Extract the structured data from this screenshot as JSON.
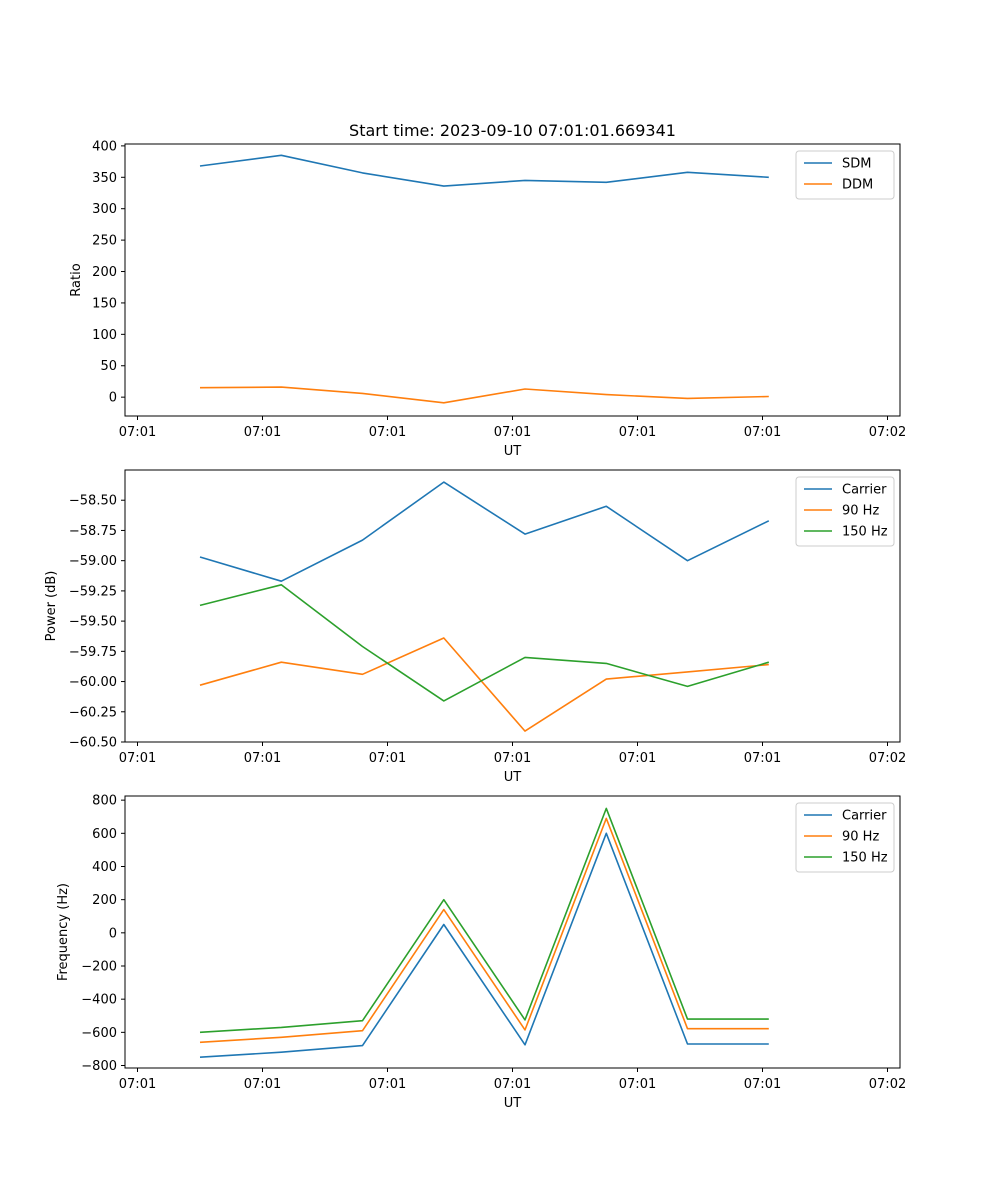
{
  "figure_title": "Start time: 2023-09-10 07:01:01.669341",
  "chart_data": [
    {
      "type": "line",
      "title": "Start time: 2023-09-10 07:01:01.669341",
      "xlabel": "UT",
      "ylabel": "Ratio",
      "x_tick_labels": [
        "07:01",
        "07:01",
        "07:01",
        "07:01",
        "07:01",
        "07:01",
        "07:02"
      ],
      "y_ticks": [
        0,
        50,
        100,
        150,
        200,
        250,
        300,
        350,
        400
      ],
      "y_tick_labels": [
        "0",
        "50",
        "100",
        "150",
        "200",
        "250",
        "300",
        "350",
        "400"
      ],
      "ylim": [
        -30,
        403
      ],
      "legend_position": "top-right",
      "x": [
        0.5,
        1.15,
        1.8,
        2.45,
        3.1,
        3.75,
        4.4,
        5.05
      ],
      "series": [
        {
          "name": "SDM",
          "color": "#1f77b4",
          "values": [
            368,
            385,
            357,
            336,
            345,
            342,
            358,
            350
          ]
        },
        {
          "name": "DDM",
          "color": "#ff7f0e",
          "values": [
            15,
            16,
            6,
            -9,
            13,
            4,
            -2,
            1
          ]
        }
      ]
    },
    {
      "type": "line",
      "title": "",
      "xlabel": "UT",
      "ylabel": "Power (dB)",
      "x_tick_labels": [
        "07:01",
        "07:01",
        "07:01",
        "07:01",
        "07:01",
        "07:01",
        "07:02"
      ],
      "y_ticks": [
        -60.5,
        -60.25,
        -60.0,
        -59.75,
        -59.5,
        -59.25,
        -59.0,
        -58.75,
        -58.5
      ],
      "y_tick_labels": [
        "−60.50",
        "−60.25",
        "−60.00",
        "−59.75",
        "−59.50",
        "−59.25",
        "−59.00",
        "−58.75",
        "−58.50"
      ],
      "ylim": [
        -60.5,
        -58.25
      ],
      "legend_position": "top-right",
      "x": [
        0.5,
        1.15,
        1.8,
        2.45,
        3.1,
        3.75,
        4.4,
        5.05
      ],
      "series": [
        {
          "name": "Carrier",
          "color": "#1f77b4",
          "values": [
            -58.97,
            -59.17,
            -58.83,
            -58.35,
            -58.78,
            -58.55,
            -59.0,
            -58.67
          ]
        },
        {
          "name": "90 Hz",
          "color": "#ff7f0e",
          "values": [
            -60.03,
            -59.84,
            -59.94,
            -59.64,
            -60.41,
            -59.98,
            -59.92,
            -59.86
          ]
        },
        {
          "name": "150 Hz",
          "color": "#2ca02c",
          "values": [
            -59.37,
            -59.2,
            -59.71,
            -60.16,
            -59.8,
            -59.85,
            -60.04,
            -59.84
          ]
        }
      ]
    },
    {
      "type": "line",
      "title": "",
      "xlabel": "UT",
      "ylabel": "Frequency (Hz)",
      "x_tick_labels": [
        "07:01",
        "07:01",
        "07:01",
        "07:01",
        "07:01",
        "07:01",
        "07:02"
      ],
      "y_ticks": [
        -800,
        -600,
        -400,
        -200,
        0,
        200,
        400,
        600,
        800
      ],
      "y_tick_labels": [
        "−800",
        "−600",
        "−400",
        "−200",
        "0",
        "200",
        "400",
        "600",
        "800"
      ],
      "ylim": [
        -815,
        825
      ],
      "legend_position": "top-right",
      "x": [
        0.5,
        1.15,
        1.8,
        2.45,
        3.1,
        3.75,
        4.4,
        5.05
      ],
      "series": [
        {
          "name": "Carrier",
          "color": "#1f77b4",
          "values": [
            -750,
            -720,
            -680,
            50,
            -675,
            600,
            -670,
            -670
          ]
        },
        {
          "name": "90 Hz",
          "color": "#ff7f0e",
          "values": [
            -660,
            -630,
            -590,
            140,
            -585,
            690,
            -578,
            -578
          ]
        },
        {
          "name": "150 Hz",
          "color": "#2ca02c",
          "values": [
            -600,
            -570,
            -530,
            200,
            -525,
            750,
            -520,
            -520
          ]
        }
      ]
    }
  ]
}
